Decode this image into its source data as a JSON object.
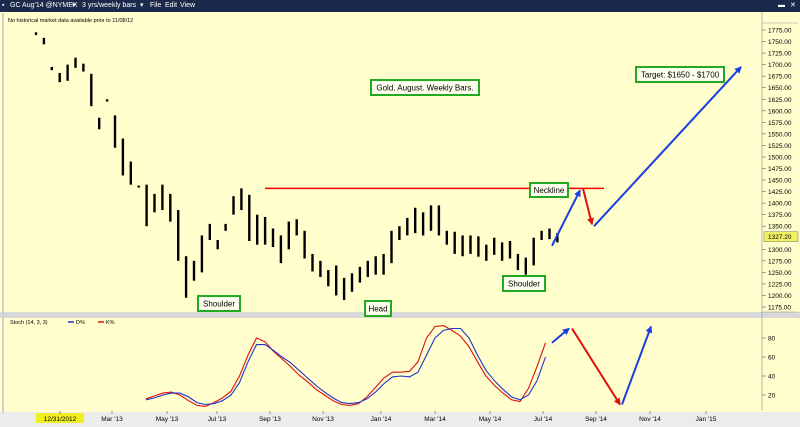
{
  "toolbar": {
    "symbol": "GC Aug'14 @NYMEX",
    "period": "3 yrs/weekly bars",
    "menu": [
      "File",
      "Edit",
      "View"
    ]
  },
  "notice": "No historical market data available prior to 11/08/12",
  "colors": {
    "background": "#fffecc",
    "toolbar": "#1b2a4a",
    "bar": "#000000",
    "neckline": "#ff0000",
    "projection_up": "#1a3fe0",
    "projection_down": "#e01010",
    "label_border": "#22aa22",
    "stoch_d": "#2233cc",
    "stoch_k": "#dd1111",
    "last_price_tag": "#f0f060"
  },
  "chart_data": [
    {
      "type": "ohlc",
      "title": "Gold. August. Weekly Bars.",
      "last_price": "1327.20",
      "y_ticks": [
        "1175.00",
        "1200.00",
        "1225.00",
        "1250.00",
        "1275.00",
        "1300.00",
        "1350.00",
        "1375.00",
        "1400.00",
        "1425.00",
        "1450.00",
        "1475.00",
        "1500.00",
        "1525.00",
        "1550.00",
        "1575.00",
        "1600.00",
        "1625.00",
        "1650.00",
        "1675.00",
        "1700.00",
        "1725.00",
        "1750.00",
        "1775.00"
      ],
      "ylim": [
        1170,
        1790
      ],
      "x_ticks": [
        "12/31/2012",
        "Mar '13",
        "May '13",
        "Jul '13",
        "Sep '13",
        "Nov '13",
        "Jan '14",
        "Mar '14",
        "May '14",
        "Jul '14",
        "Sep '14",
        "Nov '14",
        "Jan '15"
      ],
      "bars": [
        {
          "h": 1770,
          "l": 1764
        },
        {
          "h": 1758,
          "l": 1744
        },
        {
          "h": 1695,
          "l": 1688
        },
        {
          "h": 1682,
          "l": 1662
        },
        {
          "h": 1700,
          "l": 1665
        },
        {
          "h": 1715,
          "l": 1693
        },
        {
          "h": 1702,
          "l": 1685
        },
        {
          "h": 1680,
          "l": 1610
        },
        {
          "h": 1585,
          "l": 1560
        },
        {
          "h": 1625,
          "l": 1620
        },
        {
          "h": 1590,
          "l": 1520
        },
        {
          "h": 1540,
          "l": 1460
        },
        {
          "h": 1490,
          "l": 1440
        },
        {
          "h": 1438,
          "l": 1436
        },
        {
          "h": 1440,
          "l": 1350
        },
        {
          "h": 1420,
          "l": 1380
        },
        {
          "h": 1440,
          "l": 1385
        },
        {
          "h": 1420,
          "l": 1360
        },
        {
          "h": 1385,
          "l": 1275
        },
        {
          "h": 1285,
          "l": 1195
        },
        {
          "h": 1275,
          "l": 1232
        },
        {
          "h": 1330,
          "l": 1250
        },
        {
          "h": 1355,
          "l": 1320
        },
        {
          "h": 1320,
          "l": 1300
        },
        {
          "h": 1355,
          "l": 1340
        },
        {
          "h": 1415,
          "l": 1375
        },
        {
          "h": 1432,
          "l": 1385
        },
        {
          "h": 1418,
          "l": 1318
        },
        {
          "h": 1375,
          "l": 1310
        },
        {
          "h": 1370,
          "l": 1310
        },
        {
          "h": 1345,
          "l": 1305
        },
        {
          "h": 1330,
          "l": 1270
        },
        {
          "h": 1360,
          "l": 1300
        },
        {
          "h": 1365,
          "l": 1330
        },
        {
          "h": 1340,
          "l": 1280
        },
        {
          "h": 1290,
          "l": 1252
        },
        {
          "h": 1275,
          "l": 1240
        },
        {
          "h": 1255,
          "l": 1220
        },
        {
          "h": 1265,
          "l": 1200
        },
        {
          "h": 1238,
          "l": 1190
        },
        {
          "h": 1248,
          "l": 1208
        },
        {
          "h": 1262,
          "l": 1228
        },
        {
          "h": 1275,
          "l": 1240
        },
        {
          "h": 1285,
          "l": 1245
        },
        {
          "h": 1290,
          "l": 1245
        },
        {
          "h": 1340,
          "l": 1270
        },
        {
          "h": 1350,
          "l": 1320
        },
        {
          "h": 1368,
          "l": 1330
        },
        {
          "h": 1390,
          "l": 1335
        },
        {
          "h": 1380,
          "l": 1330
        },
        {
          "h": 1395,
          "l": 1340
        },
        {
          "h": 1395,
          "l": 1330
        },
        {
          "h": 1340,
          "l": 1310
        },
        {
          "h": 1338,
          "l": 1290
        },
        {
          "h": 1330,
          "l": 1285
        },
        {
          "h": 1330,
          "l": 1290
        },
        {
          "h": 1328,
          "l": 1284
        },
        {
          "h": 1310,
          "l": 1275
        },
        {
          "h": 1325,
          "l": 1288
        },
        {
          "h": 1315,
          "l": 1275
        },
        {
          "h": 1318,
          "l": 1280
        },
        {
          "h": 1290,
          "l": 1255
        },
        {
          "h": 1282,
          "l": 1245
        },
        {
          "h": 1325,
          "l": 1265
        },
        {
          "h": 1340,
          "l": 1320
        },
        {
          "h": 1345,
          "l": 1322
        },
        {
          "h": 1335,
          "l": 1315
        }
      ],
      "neckline": 1432,
      "projection_prices": {
        "neckline_peak": 1432,
        "pullback": 1350,
        "target_start": 1325,
        "target_end": 1695
      },
      "annotations": [
        "Shoulder",
        "Head",
        "Shoulder",
        "Neckline",
        "Target: $1650 - $1700"
      ]
    },
    {
      "type": "line",
      "title": "Stoch (14, 3, 3)",
      "legend": [
        "D%",
        "K%"
      ],
      "y_ticks": [
        "20",
        "40",
        "60",
        "80"
      ],
      "ylim": [
        0,
        100
      ],
      "series": [
        {
          "name": "D%",
          "values": [
            15,
            17,
            20,
            22,
            22,
            18,
            12,
            10,
            11,
            14,
            20,
            33,
            55,
            73,
            73,
            67,
            60,
            54,
            46,
            38,
            30,
            23,
            17,
            12,
            11,
            12,
            16,
            23,
            32,
            39,
            40,
            39,
            44,
            62,
            80,
            88,
            90,
            90,
            80,
            62,
            46,
            35,
            26,
            18,
            15,
            20,
            35,
            60
          ]
        },
        {
          "name": "K%",
          "values": [
            16,
            19,
            22,
            23,
            20,
            14,
            9,
            8,
            12,
            17,
            24,
            40,
            62,
            80,
            76,
            66,
            58,
            50,
            41,
            34,
            26,
            20,
            14,
            10,
            9,
            11,
            18,
            28,
            38,
            44,
            44,
            45,
            55,
            80,
            92,
            93,
            88,
            82,
            71,
            55,
            40,
            30,
            22,
            15,
            13,
            27,
            50,
            75
          ]
        }
      ],
      "projection_values": {
        "up_start": 75,
        "up_end": 90,
        "down_end": 10,
        "up2_end": 92
      }
    }
  ]
}
